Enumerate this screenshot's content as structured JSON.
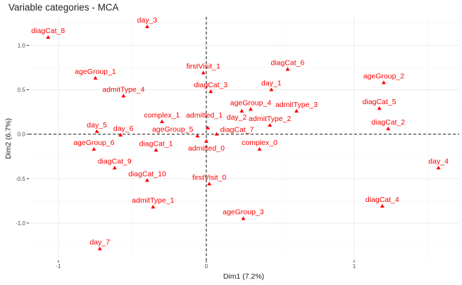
{
  "chart_data": {
    "type": "scatter",
    "title": "Variable categories - MCA",
    "xlabel": "Dim1 (7.2%)",
    "ylabel": "Dim2 (6.7%)",
    "xlim": [
      -1.2,
      1.71
    ],
    "ylim": [
      -1.42,
      1.32
    ],
    "xticks": [
      -1,
      0,
      1
    ],
    "xtick_labels": [
      "-1",
      "0",
      "1"
    ],
    "yticks": [
      -1.0,
      -0.5,
      0.0,
      0.5,
      1.0
    ],
    "ytick_labels": [
      "-1.0",
      "-0.5",
      "0.0",
      "0.5",
      "1.0"
    ],
    "grid": true,
    "reference_lines": {
      "x": 0,
      "y": 0,
      "style": "dashed"
    },
    "marker": "triangle",
    "color": "#ff0000",
    "points": [
      {
        "label": "diagCat_8",
        "x": -1.07,
        "y": 1.09
      },
      {
        "label": "day_3",
        "x": -0.4,
        "y": 1.21
      },
      {
        "label": "ageGroup_1",
        "x": -0.75,
        "y": 0.63
      },
      {
        "label": "admitType_4",
        "x": -0.56,
        "y": 0.43
      },
      {
        "label": "complex_1",
        "x": -0.3,
        "y": 0.14
      },
      {
        "label": "day_5",
        "x": -0.74,
        "y": 0.03
      },
      {
        "label": "day_6",
        "x": -0.58,
        "y": -0.01
      },
      {
        "label": "firstVisit_1",
        "x": -0.02,
        "y": 0.69
      },
      {
        "label": "diagCat_3",
        "x": 0.03,
        "y": 0.48
      },
      {
        "label": "admitted_1",
        "x": 0.01,
        "y": 0.07
      },
      {
        "label": "diagCat_7",
        "x": 0.07,
        "y": 0.0
      },
      {
        "label": "ageGroup_5",
        "x": -0.06,
        "y": -0.02
      },
      {
        "label": "admitted_0",
        "x": 0.0,
        "y": -0.08
      },
      {
        "label": "day_2",
        "x": 0.24,
        "y": 0.26
      },
      {
        "label": "ageGroup_4",
        "x": 0.3,
        "y": 0.28
      },
      {
        "label": "admitType_3",
        "x": 0.61,
        "y": 0.26
      },
      {
        "label": "admitType_2",
        "x": 0.43,
        "y": 0.1
      },
      {
        "label": "complex_0",
        "x": 0.36,
        "y": -0.17
      },
      {
        "label": "diagCat_6",
        "x": 0.55,
        "y": 0.73
      },
      {
        "label": "day_1",
        "x": 0.44,
        "y": 0.5
      },
      {
        "label": "ageGroup_2",
        "x": 1.2,
        "y": 0.58
      },
      {
        "label": "diagCat_5",
        "x": 1.17,
        "y": 0.29
      },
      {
        "label": "diagCat_2",
        "x": 1.23,
        "y": 0.06
      },
      {
        "label": "day_4",
        "x": 1.57,
        "y": -0.38
      },
      {
        "label": "diagCat_4",
        "x": 1.19,
        "y": -0.81
      },
      {
        "label": "ageGroup_3",
        "x": 0.25,
        "y": -0.95
      },
      {
        "label": "firstVisit_0",
        "x": 0.02,
        "y": -0.56
      },
      {
        "label": "admitType_1",
        "x": -0.36,
        "y": -0.82
      },
      {
        "label": "diagCat_10",
        "x": -0.4,
        "y": -0.52
      },
      {
        "label": "diagCat_9",
        "x": -0.62,
        "y": -0.38
      },
      {
        "label": "ageGroup_6",
        "x": -0.76,
        "y": -0.17
      },
      {
        "label": "diagCat_1",
        "x": -0.34,
        "y": -0.18
      },
      {
        "label": "day_7",
        "x": -0.72,
        "y": -1.29
      }
    ]
  }
}
